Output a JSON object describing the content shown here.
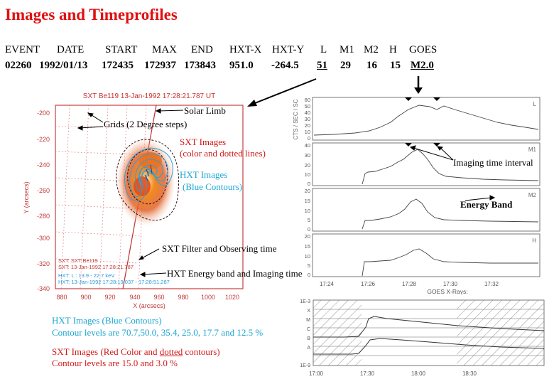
{
  "title": "Images and Timeprofiles",
  "table": {
    "headers": [
      "EVENT",
      "DATE",
      "START",
      "MAX",
      "END",
      "HXT-X",
      "HXT-Y",
      "L",
      "M1",
      "M2",
      "H",
      "GOES"
    ],
    "values": [
      "02260",
      "1992/01/13",
      "172435",
      "172937",
      "173843",
      "951.0",
      "-264.5",
      "51",
      "29",
      "16",
      "15",
      "M2.0"
    ]
  },
  "image_panel": {
    "header": "SXT Be119 13-Jan-1992 17:28:21.787 UT",
    "ylabel": "Y (arcsecs)",
    "xlabel": "X (arcsecs)",
    "y_ticks": [
      "-200",
      "-220",
      "-240",
      "-260",
      "-280",
      "-300",
      "-320",
      "-340"
    ],
    "x_ticks": [
      "880",
      "900",
      "920",
      "940",
      "960",
      "980",
      "1000",
      "1020"
    ],
    "info_sxt1": "SXT:  SXT Be119",
    "info_sxt2": "SXT: 13-Jan-1992  17:28:21.787",
    "info_hxt1": "HXT:  L : 13.9 - 22.7 keV",
    "info_hxt2": "HXT: 13-Jan-1992  17:28:19.037 - 17:28:51.287"
  },
  "annotations": {
    "solar_limb": "Solar Limb",
    "grids": "Grids (2 Degree steps)",
    "sxt_images_1": "SXT Images",
    "sxt_images_2": "(color and dotted lines)",
    "hxt_images_1": "HXT Images",
    "hxt_images_2": "(Blue Contours)",
    "sxt_filter": "SXT Filter and Observing time",
    "hxt_energy": "HXT Energy band and Imaging time",
    "imaging_interval": "Imaging time interval",
    "energy_band": "Energy Band"
  },
  "bottom_notes": {
    "hxt_title": "HXT Images (Blue Contours)",
    "hxt_levels": "Contour levels are 70.7,50.0, 35.4, 25.0, 17.7 and 12.5 %",
    "sxt_title_a": "SXT Images (Red Color and ",
    "sxt_title_b": "dotted",
    "sxt_title_c": " contours)",
    "sxt_levels": "Contour levels are 15.0 and 3.0 %"
  },
  "timeprofile": {
    "ylabel": "CTS / SEC / SC",
    "x_ticks": [
      "17:24",
      "17:26",
      "17:28",
      "17:30",
      "17:32"
    ],
    "panels": [
      {
        "band": "L",
        "y_ticks": [
          "60",
          "50",
          "40",
          "30",
          "20",
          "10",
          "0"
        ]
      },
      {
        "band": "M1",
        "y_ticks": [
          "40",
          "30",
          "20",
          "10",
          "0"
        ]
      },
      {
        "band": "M2",
        "y_ticks": [
          "20",
          "15",
          "10",
          "5",
          "0"
        ]
      },
      {
        "band": "H",
        "y_ticks": [
          "20",
          "15",
          "10",
          "5",
          "0"
        ]
      }
    ]
  },
  "goes": {
    "title": "GOES X-Rays:",
    "y_ticks": [
      "1E-3",
      "X",
      "M",
      "C",
      "B",
      "A",
      "1E-9"
    ],
    "x_ticks": [
      "17:00",
      "17:30",
      "18:00",
      "18:30"
    ]
  }
}
